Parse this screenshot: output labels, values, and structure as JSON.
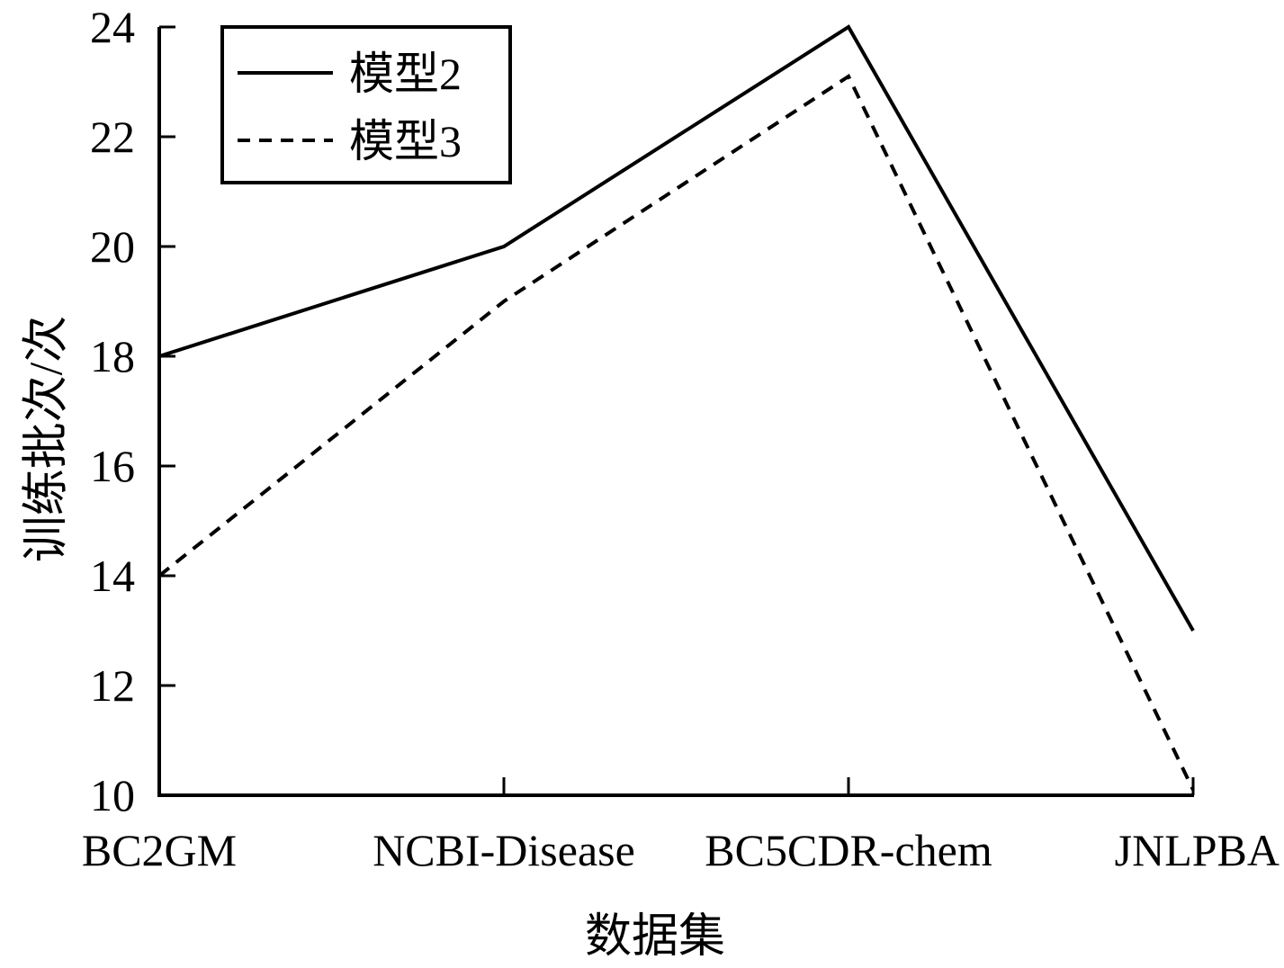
{
  "chart_data": {
    "type": "line",
    "categories": [
      "BC2GM",
      "NCBI-Disease",
      "BC5CDR-chem",
      "JNLPBA"
    ],
    "series": [
      {
        "name": "模型2",
        "values": [
          18,
          20,
          24,
          13
        ],
        "style": "solid",
        "color": "#000000"
      },
      {
        "name": "模型3",
        "values": [
          14,
          19,
          23.1,
          10.1
        ],
        "style": "dashed",
        "color": "#000000"
      }
    ],
    "xlabel": "数据集",
    "ylabel": "训练批次/次",
    "ylim": [
      10,
      24
    ],
    "yticks": [
      "10",
      "12",
      "14",
      "16",
      "18",
      "20",
      "22",
      "24"
    ],
    "grid": false,
    "legend_position": "top-left"
  }
}
